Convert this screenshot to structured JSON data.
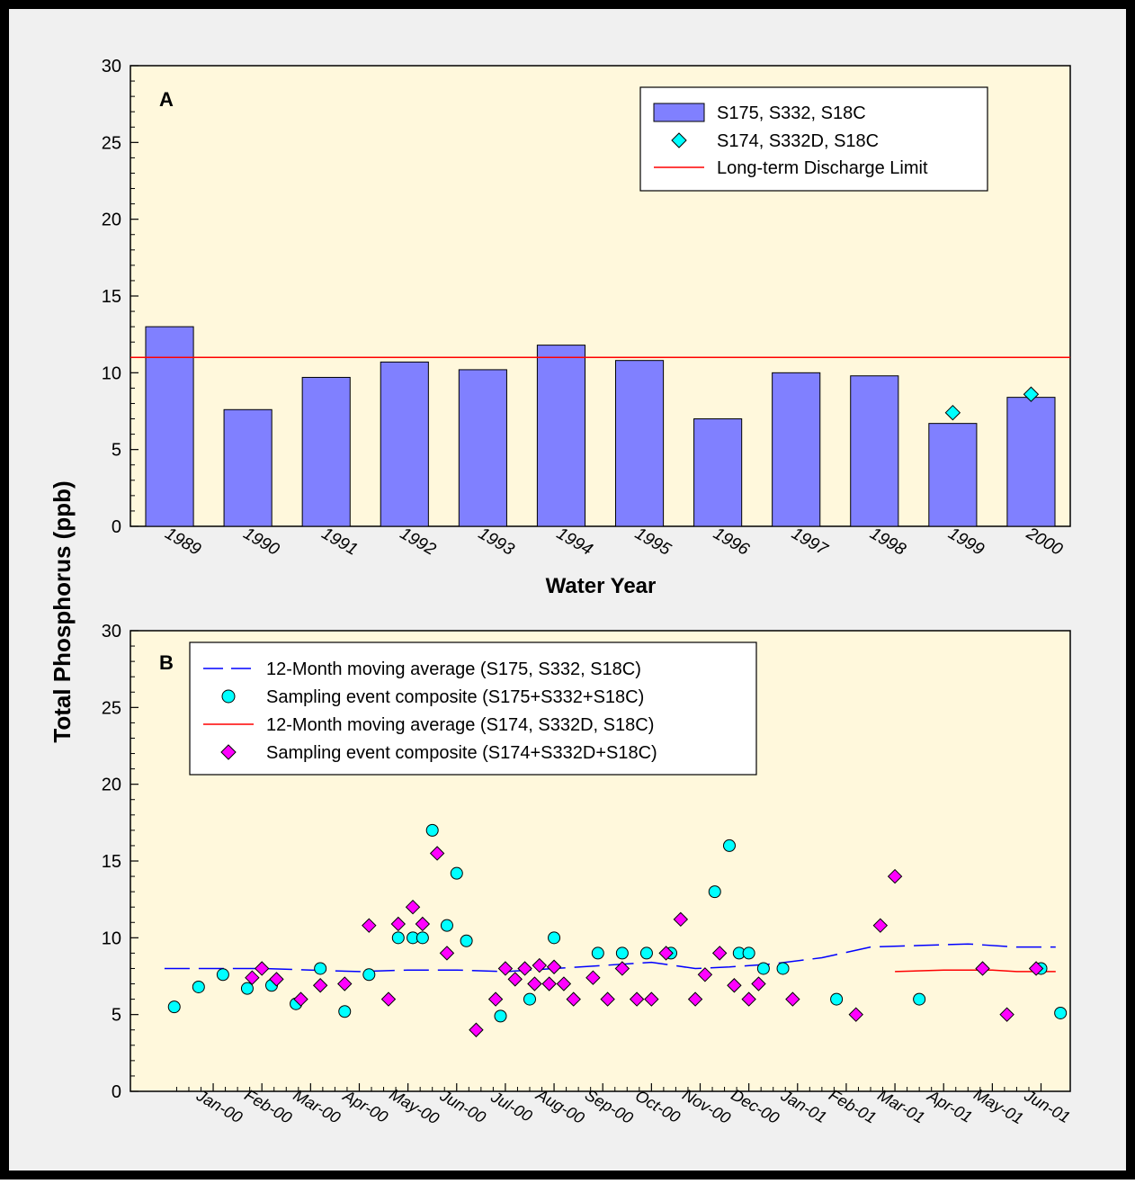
{
  "y_axis_title": "Total Phosphorus (ppb)",
  "colors": {
    "plot_bg": "#fff8dc",
    "outer_bg": "#f0f0f0",
    "bar": "#8080ff",
    "cyan": "#00ffff",
    "magenta": "#ff00ff",
    "red_line": "#ff0000",
    "blue_dash": "#0000ff"
  },
  "chart_data": [
    {
      "panel_label": "A",
      "type": "bar",
      "xlabel": "Water Year",
      "ylim": [
        0,
        30
      ],
      "yticks": [
        "0",
        "5",
        "10",
        "15",
        "20",
        "25",
        "30"
      ],
      "categories": [
        "1989",
        "1990",
        "1991",
        "1992",
        "1993",
        "1994",
        "1995",
        "1996",
        "1997",
        "1998",
        "1999",
        "2000"
      ],
      "series": [
        {
          "name": "S175, S332, S18C",
          "kind": "bar",
          "values": [
            13.0,
            7.6,
            9.7,
            10.7,
            10.2,
            11.8,
            10.8,
            7.0,
            10.0,
            9.8,
            6.7,
            8.4
          ]
        },
        {
          "name": "S174, S332D, S18C",
          "kind": "diamond",
          "values": [
            null,
            null,
            null,
            null,
            null,
            null,
            null,
            null,
            null,
            null,
            7.4,
            8.6
          ]
        },
        {
          "name": "Long-term Discharge Limit",
          "kind": "hline",
          "value": 11
        }
      ],
      "legend_position": "top-right",
      "grid": false
    },
    {
      "panel_label": "B",
      "type": "scatter",
      "xlabel": "",
      "ylim": [
        0,
        30
      ],
      "yticks": [
        "0",
        "5",
        "10",
        "15",
        "20",
        "25",
        "30"
      ],
      "x_months_0_based_from_Dec99": true,
      "xticks": [
        "Jan-00",
        "Feb-00",
        "Mar-00",
        "Apr-00",
        "May-00",
        "Jun-00",
        "Jul-00",
        "Aug-00",
        "Sep-00",
        "Oct-00",
        "Nov-00",
        "Dec-00",
        "Jan-01",
        "Feb-01",
        "Mar-01",
        "Apr-01",
        "May-01",
        "Jun-01"
      ],
      "series": [
        {
          "name": "12-Month moving average (S175, S332, S18C)",
          "kind": "dashed-line",
          "points": [
            [
              0.0,
              8.0
            ],
            [
              1.0,
              8.0
            ],
            [
              2.0,
              8.0
            ],
            [
              3.0,
              7.9
            ],
            [
              4.0,
              7.8
            ],
            [
              5.0,
              7.9
            ],
            [
              6.0,
              7.9
            ],
            [
              7.0,
              7.8
            ],
            [
              8.0,
              8.0
            ],
            [
              9.0,
              8.2
            ],
            [
              10.0,
              8.4
            ],
            [
              10.9,
              8.0
            ],
            [
              11.6,
              8.1
            ],
            [
              12.5,
              8.3
            ],
            [
              13.5,
              8.7
            ],
            [
              14.5,
              9.4
            ],
            [
              15.5,
              9.5
            ],
            [
              16.5,
              9.6
            ],
            [
              17.5,
              9.4
            ],
            [
              18.3,
              9.4
            ]
          ]
        },
        {
          "name": "Sampling event composite (S175+S332+S18C)",
          "kind": "circle",
          "points": [
            [
              0.2,
              5.5
            ],
            [
              0.7,
              6.8
            ],
            [
              1.2,
              7.6
            ],
            [
              1.7,
              6.7
            ],
            [
              2.2,
              6.9
            ],
            [
              2.7,
              5.7
            ],
            [
              3.2,
              8.0
            ],
            [
              3.7,
              5.2
            ],
            [
              4.2,
              7.6
            ],
            [
              4.8,
              10.0
            ],
            [
              5.1,
              10.0
            ],
            [
              5.3,
              10.0
            ],
            [
              5.5,
              17.0
            ],
            [
              5.8,
              10.8
            ],
            [
              6.0,
              14.2
            ],
            [
              6.2,
              9.8
            ],
            [
              6.9,
              4.9
            ],
            [
              7.5,
              6.0
            ],
            [
              8.0,
              10.0
            ],
            [
              8.9,
              9.0
            ],
            [
              9.4,
              9.0
            ],
            [
              9.9,
              9.0
            ],
            [
              10.4,
              9.0
            ],
            [
              11.3,
              13.0
            ],
            [
              11.6,
              16.0
            ],
            [
              11.8,
              9.0
            ],
            [
              12.0,
              9.0
            ],
            [
              12.3,
              8.0
            ],
            [
              12.7,
              8.0
            ],
            [
              13.8,
              6.0
            ],
            [
              15.5,
              6.0
            ],
            [
              18.0,
              8.0
            ],
            [
              18.4,
              5.1
            ]
          ]
        },
        {
          "name": "12-Month moving average (S174, S332D, S18C)",
          "kind": "solid-line",
          "points": [
            [
              15.0,
              7.8
            ],
            [
              16.0,
              7.9
            ],
            [
              17.0,
              7.9
            ],
            [
              17.5,
              7.8
            ],
            [
              18.3,
              7.8
            ]
          ]
        },
        {
          "name": "Sampling event composite (S174+S332D+S18C)",
          "kind": "diamond",
          "points": [
            [
              1.8,
              7.4
            ],
            [
              2.0,
              8.0
            ],
            [
              2.3,
              7.3
            ],
            [
              2.8,
              6.0
            ],
            [
              3.2,
              6.9
            ],
            [
              3.7,
              7.0
            ],
            [
              4.2,
              10.8
            ],
            [
              4.6,
              6.0
            ],
            [
              4.8,
              10.9
            ],
            [
              5.1,
              12.0
            ],
            [
              5.3,
              10.9
            ],
            [
              5.6,
              15.5
            ],
            [
              5.8,
              9.0
            ],
            [
              6.4,
              4.0
            ],
            [
              6.8,
              6.0
            ],
            [
              7.0,
              8.0
            ],
            [
              7.2,
              7.3
            ],
            [
              7.4,
              8.0
            ],
            [
              7.6,
              7.0
            ],
            [
              7.7,
              8.2
            ],
            [
              7.9,
              7.0
            ],
            [
              8.0,
              8.1
            ],
            [
              8.2,
              7.0
            ],
            [
              8.4,
              6.0
            ],
            [
              8.8,
              7.4
            ],
            [
              9.1,
              6.0
            ],
            [
              9.4,
              8.0
            ],
            [
              9.7,
              6.0
            ],
            [
              10.0,
              6.0
            ],
            [
              10.3,
              9.0
            ],
            [
              10.6,
              11.2
            ],
            [
              10.9,
              6.0
            ],
            [
              11.1,
              7.6
            ],
            [
              11.4,
              9.0
            ],
            [
              11.7,
              6.9
            ],
            [
              12.0,
              6.0
            ],
            [
              12.2,
              7.0
            ],
            [
              12.9,
              6.0
            ],
            [
              14.2,
              5.0
            ],
            [
              14.7,
              10.8
            ],
            [
              15.0,
              14.0
            ],
            [
              16.8,
              8.0
            ],
            [
              17.3,
              5.0
            ],
            [
              17.9,
              8.0
            ]
          ]
        }
      ],
      "legend_position": "top-left",
      "grid": false
    }
  ]
}
